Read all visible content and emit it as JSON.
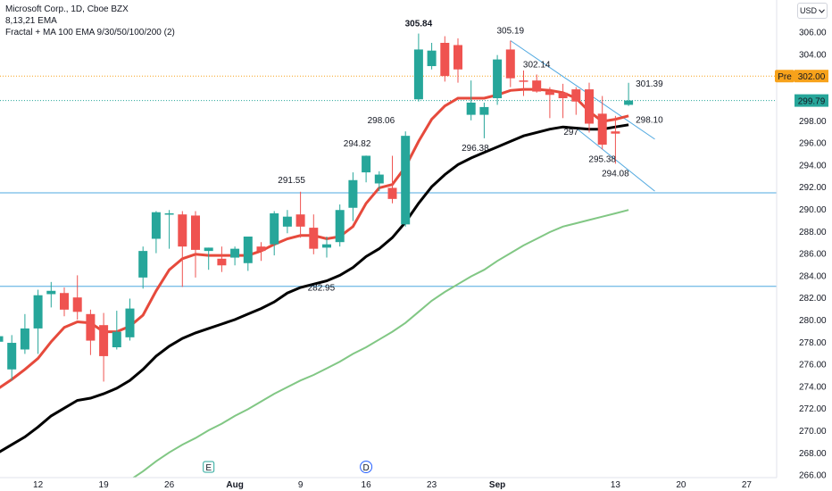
{
  "legend": {
    "symbol_line": "Microsoft Corp., 1D, Cboe BZX",
    "ema_line": "8,13,21 EMA",
    "fractal_line": "Fractal + MA 100 EMA 9/30/50/100/200 (2)"
  },
  "currency_button": {
    "label": "USD",
    "icon": "chevron-down-icon"
  },
  "chart_data": {
    "type": "candlestick",
    "y_ticks": [
      266,
      268,
      270,
      272,
      274,
      276,
      278,
      280,
      282,
      284,
      286,
      288,
      290,
      292,
      294,
      296,
      298,
      300,
      302,
      304,
      306
    ],
    "ylim": [
      265.4,
      308.4
    ],
    "x_ticks": [
      "12",
      "19",
      "26",
      "Aug",
      "9",
      "16",
      "23",
      "Sep",
      "13",
      "20",
      "27"
    ],
    "candles": [
      {
        "o": 278.0,
        "h": 281.0,
        "l": 275.5,
        "c": 278.5
      },
      {
        "o": 275.5,
        "h": 278.6,
        "l": 274.5,
        "c": 277.9
      },
      {
        "o": 277.3,
        "h": 280.5,
        "l": 276.9,
        "c": 279.2
      },
      {
        "o": 279.2,
        "h": 282.7,
        "l": 276.9,
        "c": 282.2
      },
      {
        "o": 282.3,
        "h": 283.4,
        "l": 281.1,
        "c": 282.6
      },
      {
        "o": 282.4,
        "h": 282.9,
        "l": 280.3,
        "c": 280.9
      },
      {
        "o": 282.0,
        "h": 284.0,
        "l": 280.0,
        "c": 280.7
      },
      {
        "o": 280.5,
        "h": 280.9,
        "l": 276.8,
        "c": 278.1
      },
      {
        "o": 279.5,
        "h": 280.6,
        "l": 274.4,
        "c": 276.7
      },
      {
        "o": 277.5,
        "h": 280.8,
        "l": 277.3,
        "c": 278.9
      },
      {
        "o": 278.4,
        "h": 281.9,
        "l": 278.1,
        "c": 281.0
      },
      {
        "o": 283.8,
        "h": 286.6,
        "l": 282.8,
        "c": 286.2
      },
      {
        "o": 287.3,
        "h": 289.8,
        "l": 286.0,
        "c": 289.7
      },
      {
        "o": 289.5,
        "h": 289.9,
        "l": 286.4,
        "c": 289.6
      },
      {
        "o": 289.5,
        "h": 289.8,
        "l": 282.95,
        "c": 286.6
      },
      {
        "o": 289.4,
        "h": 289.8,
        "l": 283.8,
        "c": 286.3
      },
      {
        "o": 286.2,
        "h": 286.5,
        "l": 284.5,
        "c": 286.5
      },
      {
        "o": 285.5,
        "h": 286.6,
        "l": 284.3,
        "c": 284.9
      },
      {
        "o": 285.6,
        "h": 286.6,
        "l": 284.9,
        "c": 286.4
      },
      {
        "o": 285.1,
        "h": 287.5,
        "l": 284.4,
        "c": 287.5
      },
      {
        "o": 286.6,
        "h": 287.0,
        "l": 285.3,
        "c": 286.2
      },
      {
        "o": 286.8,
        "h": 289.8,
        "l": 285.8,
        "c": 289.6
      },
      {
        "o": 288.4,
        "h": 289.9,
        "l": 287.8,
        "c": 289.3
      },
      {
        "o": 289.5,
        "h": 291.55,
        "l": 287.4,
        "c": 288.4
      },
      {
        "o": 288.3,
        "h": 289.5,
        "l": 285.9,
        "c": 286.4
      },
      {
        "o": 286.5,
        "h": 287.5,
        "l": 285.6,
        "c": 286.8
      },
      {
        "o": 287.0,
        "h": 290.4,
        "l": 286.6,
        "c": 289.9
      },
      {
        "o": 290.1,
        "h": 293.3,
        "l": 288.9,
        "c": 292.6
      },
      {
        "o": 293.3,
        "h": 294.82,
        "l": 292.4,
        "c": 294.8
      },
      {
        "o": 292.3,
        "h": 293.4,
        "l": 291.6,
        "c": 293.1
      },
      {
        "o": 291.9,
        "h": 294.8,
        "l": 290.5,
        "c": 290.9
      },
      {
        "o": 288.6,
        "h": 297.0,
        "l": 288.4,
        "c": 296.6
      },
      {
        "o": 299.9,
        "h": 305.84,
        "l": 299.7,
        "c": 304.4
      },
      {
        "o": 302.9,
        "h": 305.0,
        "l": 302.6,
        "c": 304.3
      },
      {
        "o": 305.0,
        "h": 305.6,
        "l": 301.5,
        "c": 302.0
      },
      {
        "o": 304.8,
        "h": 305.4,
        "l": 301.4,
        "c": 302.6
      },
      {
        "o": 298.5,
        "h": 301.6,
        "l": 298.0,
        "c": 299.6
      },
      {
        "o": 298.5,
        "h": 299.6,
        "l": 296.38,
        "c": 299.2
      },
      {
        "o": 300.0,
        "h": 303.9,
        "l": 299.4,
        "c": 303.5
      },
      {
        "o": 304.4,
        "h": 305.19,
        "l": 301.0,
        "c": 301.8
      },
      {
        "o": 301.6,
        "h": 302.5,
        "l": 300.2,
        "c": 301.5
      },
      {
        "o": 301.6,
        "h": 302.14,
        "l": 300.5,
        "c": 300.6
      },
      {
        "o": 300.6,
        "h": 301.0,
        "l": 298.2,
        "c": 300.3
      },
      {
        "o": 300.5,
        "h": 301.3,
        "l": 298.2,
        "c": 300.0
      },
      {
        "o": 300.8,
        "h": 301.0,
        "l": 298.5,
        "c": 299.7
      },
      {
        "o": 300.8,
        "h": 301.4,
        "l": 296.9,
        "c": 297.7
      },
      {
        "o": 298.6,
        "h": 300.2,
        "l": 295.38,
        "c": 295.8
      },
      {
        "o": 297.0,
        "h": 298.4,
        "l": 294.08,
        "c": 296.8
      },
      {
        "o": 299.4,
        "h": 301.39,
        "l": 299.3,
        "c": 299.79
      }
    ],
    "ema_red": [
      273.8,
      274.6,
      275.5,
      276.5,
      278.0,
      279.3,
      279.8,
      279.7,
      278.9,
      278.9,
      279.4,
      280.4,
      282.6,
      284.5,
      285.5,
      285.9,
      285.8,
      285.8,
      285.8,
      285.8,
      286.2,
      286.8,
      287.3,
      287.6,
      287.6,
      287.3,
      287.5,
      288.4,
      290.5,
      291.9,
      292.2,
      293.8,
      296.1,
      298.1,
      299.3,
      300.0,
      300.0,
      300.0,
      300.3,
      300.7,
      300.8,
      300.8,
      300.7,
      300.5,
      300.0,
      298.8,
      297.9,
      298.1,
      298.4
    ],
    "ema_black": [
      268.0,
      268.7,
      269.4,
      270.3,
      271.3,
      272.0,
      272.7,
      272.9,
      273.3,
      273.8,
      274.5,
      275.5,
      276.7,
      277.6,
      278.3,
      278.8,
      279.2,
      279.6,
      280.0,
      280.5,
      281.0,
      281.6,
      282.4,
      282.9,
      283.2,
      283.5,
      284.0,
      284.7,
      285.7,
      286.4,
      287.4,
      288.8,
      290.5,
      292.0,
      293.1,
      294.0,
      294.6,
      295.1,
      295.6,
      296.1,
      296.6,
      296.9,
      297.2,
      297.4,
      297.3,
      297.2,
      297.2,
      297.4,
      297.6
    ],
    "ema_green": [
      null,
      null,
      null,
      null,
      null,
      null,
      null,
      null,
      null,
      null,
      265.5,
      266.3,
      267.2,
      268.0,
      268.7,
      269.3,
      270.0,
      270.6,
      271.3,
      271.9,
      272.6,
      273.3,
      273.9,
      274.5,
      275.0,
      275.6,
      276.2,
      276.9,
      277.5,
      278.2,
      278.9,
      279.7,
      280.7,
      281.7,
      282.5,
      283.2,
      283.9,
      284.5,
      285.3,
      286.0,
      286.7,
      287.3,
      287.9,
      288.4,
      288.7,
      289.0,
      289.3,
      289.6,
      289.9
    ],
    "annotations": [
      {
        "text": "305.84",
        "i": 32,
        "v": 305.84,
        "pos": "top",
        "bold": true
      },
      {
        "text": "305.19",
        "i": 39,
        "v": 305.19,
        "pos": "top"
      },
      {
        "text": "302.14",
        "i": 41,
        "v": 302.14,
        "pos": "top-right"
      },
      {
        "text": "301.39",
        "i": 48,
        "v": 301.39,
        "pos": "right"
      },
      {
        "text": "298.06",
        "i": 31,
        "v": 298.06,
        "pos": "left"
      },
      {
        "text": "298.10",
        "i": 48,
        "v": 298.1,
        "pos": "right"
      },
      {
        "text": "296.38",
        "i": 37,
        "v": 296.38,
        "pos": "bottom-left"
      },
      {
        "text": "297",
        "i": 45,
        "v": 297.0,
        "pos": "left"
      },
      {
        "text": "295.38",
        "i": 46,
        "v": 295.38,
        "pos": "bottom"
      },
      {
        "text": "294.08",
        "i": 47,
        "v": 294.08,
        "pos": "bottom"
      },
      {
        "text": "294.82",
        "i": 28,
        "v": 294.82,
        "pos": "top-left"
      },
      {
        "text": "291.55",
        "i": 23,
        "v": 291.55,
        "pos": "top-left"
      },
      {
        "text": "282.95",
        "i": 23,
        "v": 282.95,
        "pos": "right"
      }
    ],
    "hlines": [
      291.45,
      283.0
    ],
    "channel": {
      "upper": [
        [
          39,
          305.2
        ],
        [
          50,
          296.3
        ]
      ],
      "lower": [
        [
          44,
          297.3
        ],
        [
          50,
          291.6
        ]
      ]
    },
    "pre_line": {
      "value": 302.0,
      "label": "Pre",
      "price_label": "302.00",
      "color": "#f7a21b"
    },
    "last_price": {
      "value": 299.79,
      "label": "299.79",
      "color": "#26a69a"
    },
    "events": [
      {
        "i": 16,
        "label": "E"
      },
      {
        "i": 28,
        "label": "D"
      }
    ],
    "colors": {
      "up": "#26a69a",
      "down": "#ef5350",
      "ema_red": "#e64a3c",
      "ema_black": "#000000",
      "ema_green": "#81c784",
      "hline": "#4fa8e0",
      "channel": "#4fa8e0"
    }
  }
}
